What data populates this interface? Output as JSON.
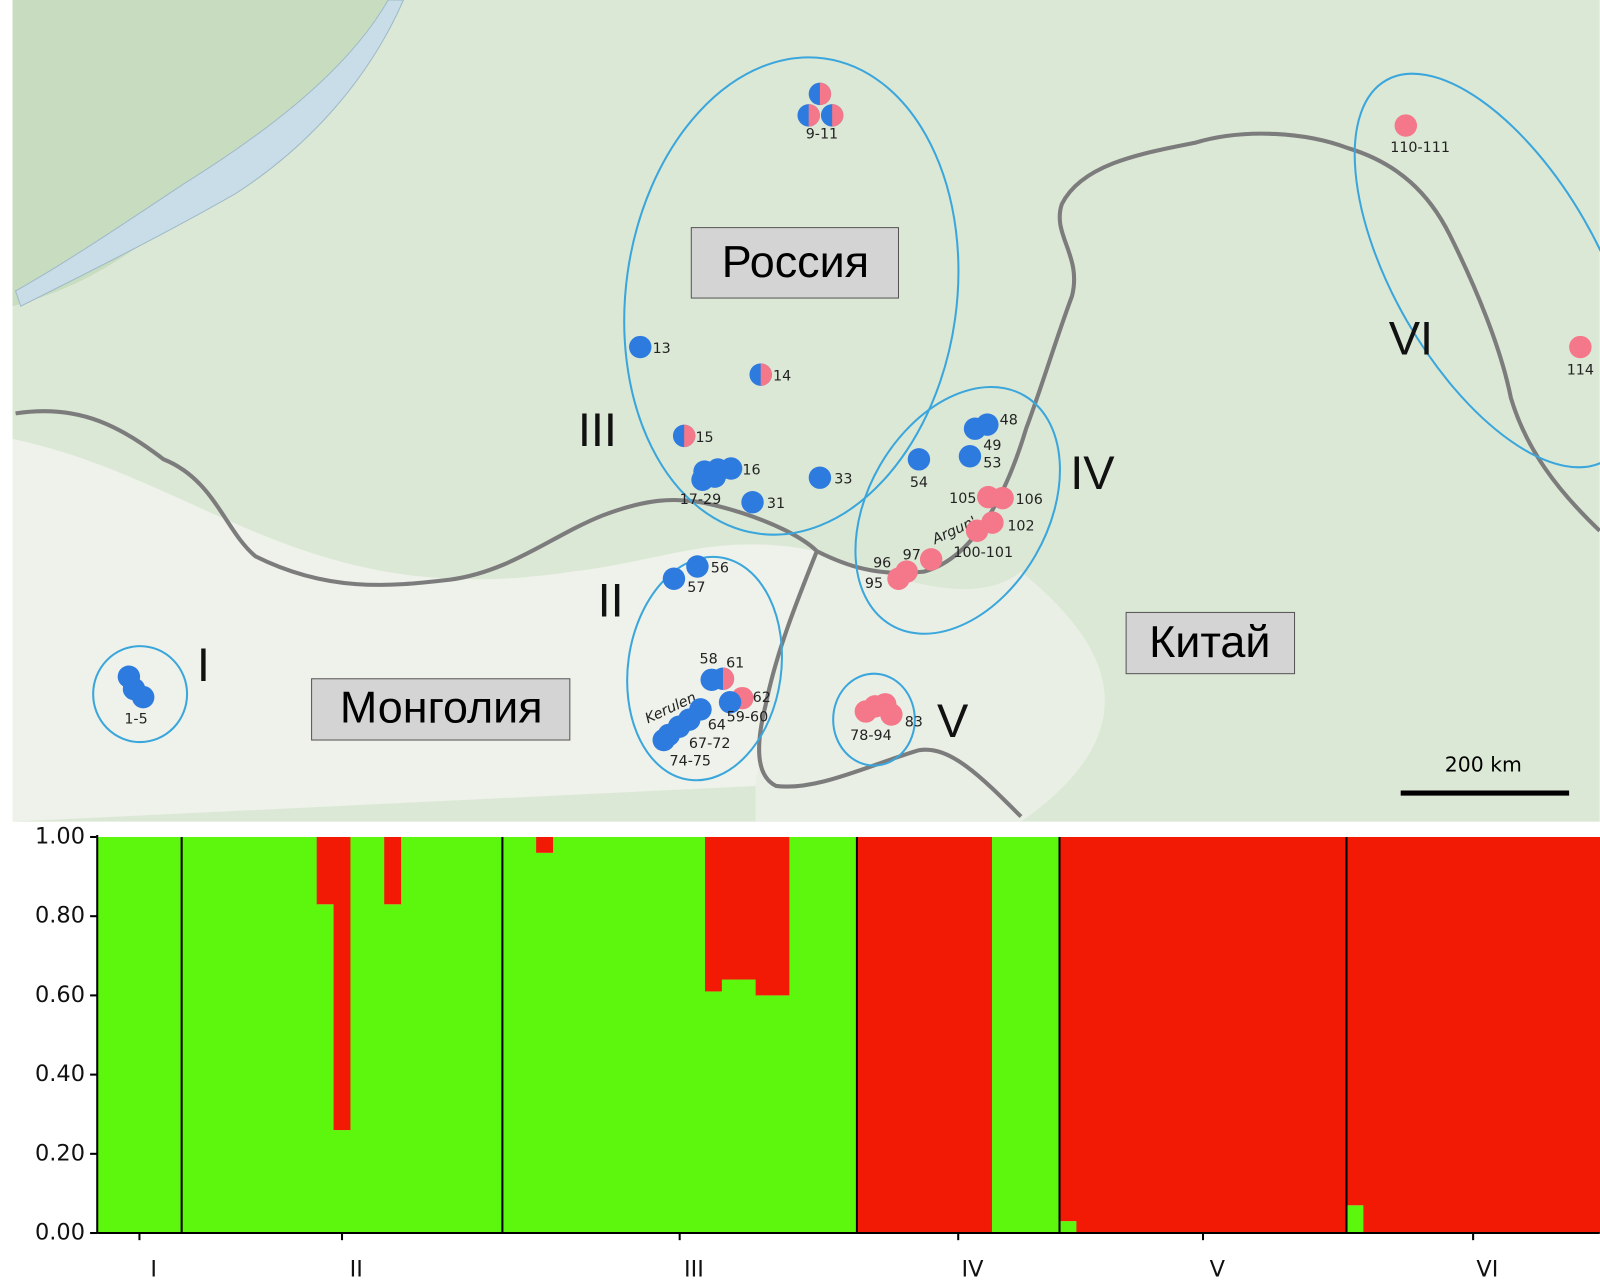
{
  "map": {
    "countries": [
      "Россия",
      "Монголия",
      "Китай"
    ],
    "regions": [
      "I",
      "II",
      "III",
      "IV",
      "V",
      "VI"
    ],
    "rivers": [
      "Argun'",
      "Kerulen"
    ],
    "scale": "200 km",
    "sites": [
      "9-11",
      "13",
      "14",
      "15",
      "16",
      "17-29",
      "31",
      "33",
      "48",
      "49",
      "53",
      "54",
      "105",
      "106",
      "102",
      "100-101",
      "97",
      "96",
      "95",
      "56",
      "57",
      "58",
      "61",
      "62",
      "59-60",
      "64",
      "67-72",
      "74-75",
      "1-5",
      "78-94",
      "83",
      "110-111",
      "114"
    ]
  },
  "chart_data": {
    "type": "bar",
    "stacked": true,
    "categories": [
      "I",
      "II",
      "III",
      "IV",
      "V",
      "VI"
    ],
    "ylim": [
      0,
      1
    ],
    "yticks": [
      {
        "value": 0,
        "label": "0.00"
      },
      {
        "value": 0.2,
        "label": "0.20"
      },
      {
        "value": 0.4,
        "label": "0.40"
      },
      {
        "value": 0.6,
        "label": "0.60"
      },
      {
        "value": 0.8,
        "label": "0.80"
      },
      {
        "value": 1,
        "label": "1.00"
      }
    ],
    "series": [
      {
        "color": "#5df70e",
        "values": [
          [
            1,
            1,
            1,
            1,
            1
          ],
          [
            1,
            1,
            1,
            1,
            1,
            1,
            1,
            1,
            0.83,
            0.26,
            1,
            1,
            0.83,
            1,
            1,
            1,
            1,
            1,
            1
          ],
          [
            1,
            1,
            0.96,
            1,
            1,
            1,
            1,
            1,
            1,
            1,
            1,
            1,
            0.61,
            0.64,
            0.64,
            0.6,
            0.6,
            1,
            1,
            1,
            1
          ],
          [
            0,
            0,
            0,
            0,
            0,
            0,
            0,
            0,
            1,
            1,
            1,
            1
          ],
          [
            0.03,
            0,
            0,
            0,
            0,
            0,
            0,
            0,
            0,
            0,
            0,
            0,
            0,
            0,
            0,
            0,
            0
          ],
          [
            0.07,
            0,
            0,
            0,
            0,
            0,
            0,
            0,
            0,
            0,
            0,
            0,
            0,
            0,
            0
          ]
        ]
      },
      {
        "color": "#f21a05",
        "values": [
          [
            0,
            0,
            0,
            0,
            0
          ],
          [
            0,
            0,
            0,
            0,
            0,
            0,
            0,
            0,
            0.17,
            0.74,
            0,
            0,
            0.17,
            0,
            0,
            0,
            0,
            0,
            0
          ],
          [
            0,
            0,
            0.04,
            0,
            0,
            0,
            0,
            0,
            0,
            0,
            0,
            0,
            0.39,
            0.36,
            0.36,
            0.4,
            0.4,
            0,
            0,
            0,
            0
          ],
          [
            1,
            1,
            1,
            1,
            1,
            1,
            1,
            1,
            0,
            0,
            0,
            0
          ],
          [
            0.97,
            1,
            1,
            1,
            1,
            1,
            1,
            1,
            1,
            1,
            1,
            1,
            1,
            1,
            1,
            1,
            1
          ],
          [
            0.93,
            1,
            1,
            1,
            1,
            1,
            1,
            1,
            1,
            1,
            1,
            1,
            1,
            1,
            1
          ]
        ]
      }
    ]
  }
}
